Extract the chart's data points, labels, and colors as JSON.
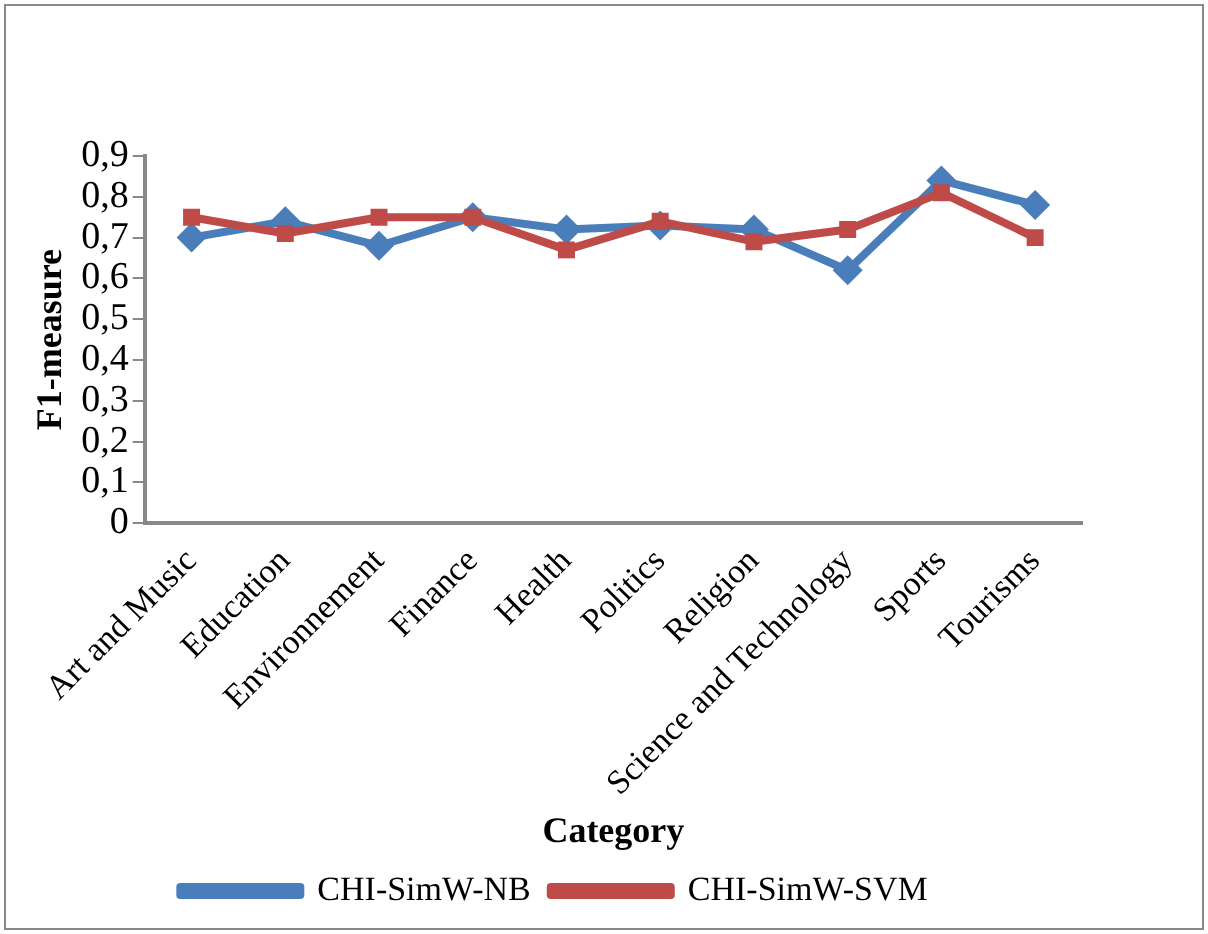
{
  "chart_data": {
    "type": "line",
    "xlabel": "Category",
    "ylabel": "F1-measure",
    "categories": [
      "Art and Music",
      "Education",
      "Environnement",
      "Finance",
      "Health",
      "Politics",
      "Religion",
      "Science and Technology",
      "Sports",
      "Tourisms"
    ],
    "series": [
      {
        "name": "CHI-SimW-NB",
        "color": "#4a7ebb",
        "marker": "diamond",
        "values": [
          0.7,
          0.74,
          0.68,
          0.75,
          0.72,
          0.73,
          0.72,
          0.62,
          0.84,
          0.78
        ]
      },
      {
        "name": "CHI-SimW-SVM",
        "color": "#be4b48",
        "marker": "square",
        "values": [
          0.75,
          0.71,
          0.75,
          0.75,
          0.67,
          0.74,
          0.69,
          0.72,
          0.81,
          0.7
        ]
      }
    ],
    "ylim": [
      0,
      0.9
    ],
    "yticks": [
      {
        "value": 0,
        "label": "0"
      },
      {
        "value": 0.1,
        "label": "0,1"
      },
      {
        "value": 0.2,
        "label": "0,2"
      },
      {
        "value": 0.3,
        "label": "0,3"
      },
      {
        "value": 0.4,
        "label": "0,4"
      },
      {
        "value": 0.5,
        "label": "0,5"
      },
      {
        "value": 0.6,
        "label": "0,6"
      },
      {
        "value": 0.7,
        "label": "0,7"
      },
      {
        "value": 0.8,
        "label": "0,8"
      },
      {
        "value": 0.9,
        "label": "0,9"
      }
    ],
    "grid": false,
    "legend": "bottom",
    "line_style": "solid"
  }
}
